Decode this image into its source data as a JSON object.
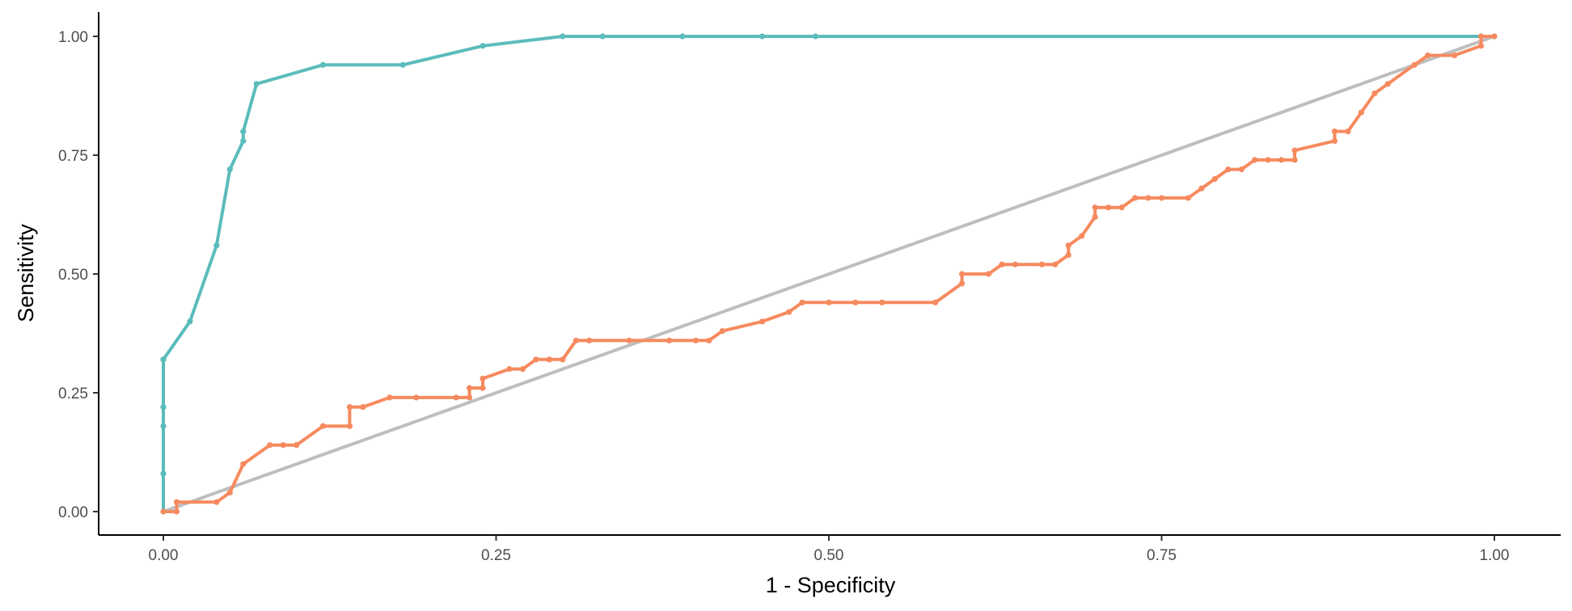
{
  "chart_data": {
    "type": "line",
    "title": "",
    "xlabel": "1 - Specificity",
    "ylabel": "Sensitivity",
    "xlim": [
      0,
      1
    ],
    "ylim": [
      0,
      1
    ],
    "x_ticks": [
      "0.00",
      "0.25",
      "0.50",
      "0.75",
      "1.00"
    ],
    "y_ticks": [
      "0.00",
      "0.25",
      "0.50",
      "0.75",
      "1.00"
    ],
    "grid": false,
    "legend": "none",
    "reference_line": {
      "x": [
        0,
        1
      ],
      "y": [
        0,
        1
      ],
      "color": "#bebebe"
    },
    "series": [
      {
        "color": "#5bbcbb",
        "x": [
          0.0,
          0.0,
          0.0,
          0.0,
          0.0,
          0.0,
          0.02,
          0.04,
          0.05,
          0.06,
          0.06,
          0.07,
          0.12,
          0.18,
          0.24,
          0.3,
          0.33,
          0.39,
          0.45,
          0.49,
          0.99,
          1.0
        ],
        "y": [
          0.0,
          0.08,
          0.18,
          0.22,
          0.32,
          0.32,
          0.4,
          0.56,
          0.72,
          0.78,
          0.8,
          0.9,
          0.94,
          0.94,
          0.98,
          1.0,
          1.0,
          1.0,
          1.0,
          1.0,
          1.0,
          1.0
        ]
      },
      {
        "color": "#f68a5f",
        "x": [
          0.0,
          0.01,
          0.01,
          0.04,
          0.05,
          0.06,
          0.08,
          0.09,
          0.1,
          0.12,
          0.14,
          0.14,
          0.15,
          0.17,
          0.19,
          0.22,
          0.23,
          0.23,
          0.24,
          0.24,
          0.26,
          0.27,
          0.28,
          0.29,
          0.3,
          0.31,
          0.32,
          0.35,
          0.38,
          0.4,
          0.41,
          0.42,
          0.45,
          0.47,
          0.48,
          0.5,
          0.52,
          0.54,
          0.58,
          0.6,
          0.6,
          0.62,
          0.63,
          0.64,
          0.66,
          0.67,
          0.68,
          0.68,
          0.69,
          0.7,
          0.7,
          0.71,
          0.72,
          0.73,
          0.74,
          0.75,
          0.77,
          0.78,
          0.79,
          0.8,
          0.81,
          0.82,
          0.83,
          0.84,
          0.85,
          0.85,
          0.88,
          0.88,
          0.89,
          0.9,
          0.91,
          0.92,
          0.94,
          0.95,
          0.97,
          0.99,
          0.99,
          1.0
        ],
        "y": [
          0.0,
          0.0,
          0.02,
          0.02,
          0.04,
          0.1,
          0.14,
          0.14,
          0.14,
          0.18,
          0.18,
          0.22,
          0.22,
          0.24,
          0.24,
          0.24,
          0.24,
          0.26,
          0.26,
          0.28,
          0.3,
          0.3,
          0.32,
          0.32,
          0.32,
          0.36,
          0.36,
          0.36,
          0.36,
          0.36,
          0.36,
          0.38,
          0.4,
          0.42,
          0.44,
          0.44,
          0.44,
          0.44,
          0.44,
          0.48,
          0.5,
          0.5,
          0.52,
          0.52,
          0.52,
          0.52,
          0.54,
          0.56,
          0.58,
          0.62,
          0.64,
          0.64,
          0.64,
          0.66,
          0.66,
          0.66,
          0.66,
          0.68,
          0.7,
          0.72,
          0.72,
          0.74,
          0.74,
          0.74,
          0.74,
          0.76,
          0.78,
          0.8,
          0.8,
          0.84,
          0.88,
          0.9,
          0.94,
          0.96,
          0.96,
          0.98,
          1.0,
          1.0
        ]
      }
    ]
  }
}
